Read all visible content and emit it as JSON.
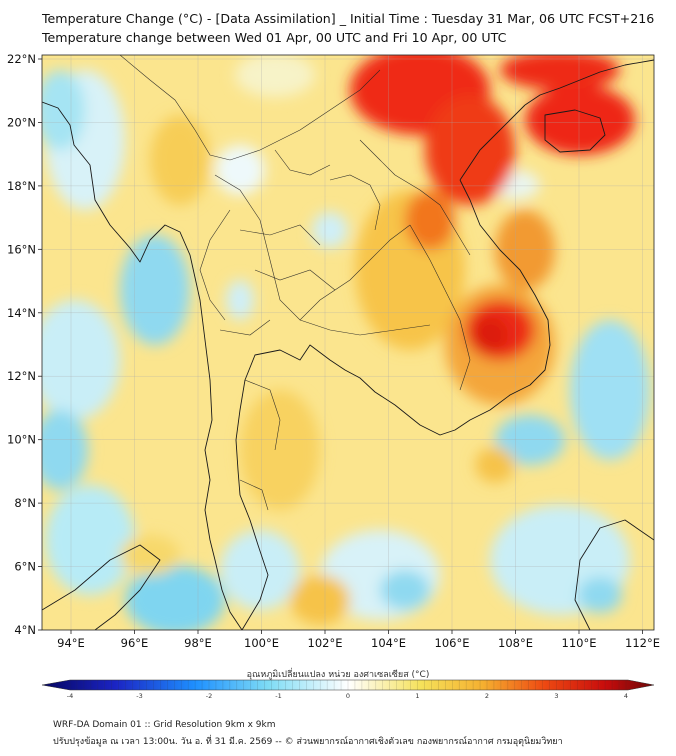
{
  "title": {
    "line1": "Temperature Change (°C) - [Data Assimilation] _ Initial Time : Tuesday 31 Mar, 06 UTC FCST+216",
    "line2": "Temperature change between Wed 01 Apr, 00 UTC and Fri 10 Apr, 00 UTC"
  },
  "map": {
    "lat_ticks": [
      "22°N",
      "20°N",
      "18°N",
      "16°N",
      "14°N",
      "12°N",
      "10°N",
      "8°N",
      "6°N",
      "4°N"
    ],
    "lon_ticks": [
      "94°E",
      "96°E",
      "98°E",
      "100°E",
      "102°E",
      "104°E",
      "106°E",
      "108°E",
      "110°E",
      "112°E"
    ]
  },
  "colorbar": {
    "label": "อุณหภูมิเปลี่ยนแปลง หน่วย องศาเซลเซียส (°C)",
    "ticks": [
      "-4",
      "-3",
      "-2",
      "-1",
      "0",
      "1",
      "2",
      "3",
      "4"
    ],
    "colors": {
      "min": "#060660",
      "cold": "#1e90ff",
      "cool": "#9ee6f5",
      "neutral": "#ffffff",
      "warm": "#f5e15a",
      "hot": "#f08a1c",
      "very_hot": "#ee1c10",
      "max": "#6b0808"
    }
  },
  "footer": {
    "line1": "WRF-DA Domain 01 :: Grid Resolution 9km x 9km",
    "line2": "ปรับปรุงข้อมูล ณ เวลา 13:00น. วัน อ. ที่ 31 มี.ค. 2569 -- © ส่วนพยากรณ์อากาศเชิงตัวเลข กองพยากรณ์อากาศ กรมอุตุนิยมวิทยา"
  }
}
